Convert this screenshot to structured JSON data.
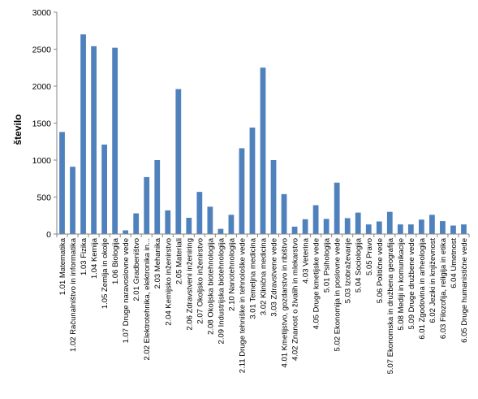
{
  "chart_data": {
    "type": "bar",
    "title": "",
    "xlabel": "",
    "ylabel": "število",
    "ylim": [
      0,
      3000
    ],
    "yticks": [
      0,
      500,
      1000,
      1500,
      2000,
      2500,
      3000
    ],
    "grid": false,
    "legend": "none",
    "bar_color": "#4f81bd",
    "categories": [
      "1.01 Matematika",
      "1.02 Računalništvo in informatika",
      "1.03 Fizika",
      "1.04 Kemija",
      "1.05 Zemlja in okolje",
      "1.06 Biologija",
      "1.07 Druge naravoslovne vede",
      "2.01 Gradbeništvo",
      "2.02 Elektrotehnika, elektronika in...",
      "2.03 Mehanika",
      "2.04 Kemijsko inženirstvo",
      "2.05 Materiali",
      "2.06 Zdravstveni inženiring",
      "2.07 Okoljsko inženirstvo",
      "2.08 Okoljska biotehnologija",
      "2.09 Industrijska biotehnologija",
      "2.10 Nanotehnologija",
      "2.11 Druge tehniške in tehnološke vede",
      "3.01 Temeljna medicina",
      "3.02 Klinična medicina",
      "3.03 Zdravstvene vede",
      "4.01 Kmetijstvo, gozdarstvo in ribištvo",
      "4.02 Znanost o živalih in mlekarstvo",
      "4.03 Veterina",
      "4.05 Druge kmetijske vede",
      "5.01 Psihologija",
      "5.02 Ekonomija in poslovne vede",
      "5.03 Izobraževanje",
      "5.04 Sociologija",
      "5.05 Pravo",
      "5.06 Politične vede",
      "5.07 Ekonomska in družbena geografija",
      "5.08 Mediji in komunikacije",
      "5.09 Druge družbene vede",
      "6.01 Zgodovina in arheologija",
      "6.02 Jeziki in književnost",
      "6.03 Filozofija, religija in etika",
      "6.04 Umetnost",
      "6.05 Druge humanistične vede"
    ],
    "values": [
      1380,
      910,
      2700,
      2540,
      1210,
      2520,
      50,
      280,
      770,
      1000,
      320,
      1960,
      220,
      570,
      370,
      70,
      260,
      1160,
      1440,
      2250,
      1000,
      540,
      100,
      200,
      390,
      205,
      695,
      215,
      290,
      130,
      170,
      300,
      130,
      130,
      195,
      260,
      175,
      115,
      130
    ]
  }
}
